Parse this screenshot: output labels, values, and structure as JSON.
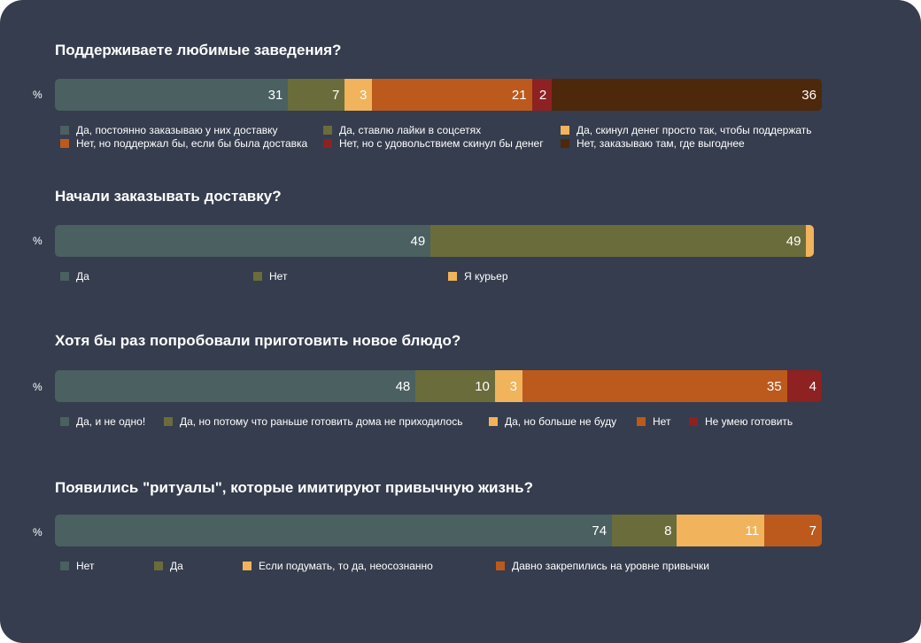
{
  "colors": {
    "background": "#353d4e",
    "palette": [
      "#4a6061",
      "#6b6c3b",
      "#f1b35b",
      "#bb5a1c",
      "#8e2121",
      "#4e280a"
    ]
  },
  "unit_label": "%",
  "chart_data": [
    {
      "type": "bar",
      "orientation": "horizontal-stacked",
      "title": "Поддерживаете любимые заведения?",
      "unit": "%",
      "series": [
        {
          "name": "Да, постоянно заказываю у них доставку",
          "value": 31,
          "color": "#4a6061"
        },
        {
          "name": "Да, ставлю лайки в соцсетях",
          "value": 7,
          "color": "#6b6c3b"
        },
        {
          "name": "Да, скинул денег просто так, чтобы поддержать",
          "value": 3,
          "color": "#f1b35b"
        },
        {
          "name": "Нет, но поддержал бы, если бы была доставка",
          "value": 21,
          "color": "#bb5a1c"
        },
        {
          "name": "Нет, но с удовольствием скинул бы денег",
          "value": 2,
          "color": "#8e2121"
        },
        {
          "name": "Нет, заказываю там, где выгоднее",
          "value": 36,
          "color": "#4e280a"
        }
      ]
    },
    {
      "type": "bar",
      "orientation": "horizontal-stacked",
      "title": "Начали заказывать доставку?",
      "unit": "%",
      "series": [
        {
          "name": "Да",
          "value": 49,
          "color": "#4a6061"
        },
        {
          "name": "Нет",
          "value": 49,
          "color": "#6b6c3b"
        },
        {
          "name": "Я курьер",
          "value": 1,
          "color": "#f1b35b",
          "hide_label": true
        }
      ]
    },
    {
      "type": "bar",
      "orientation": "horizontal-stacked",
      "title": "Хотя бы раз попробовали приготовить новое блюдо?",
      "unit": "%",
      "series": [
        {
          "name": "Да, и не одно!",
          "value": 48,
          "color": "#4a6061"
        },
        {
          "name": "Да, но потому что раньше готовить дома не приходилось",
          "value": 10,
          "color": "#6b6c3b"
        },
        {
          "name": "Да, но больше не буду",
          "value": 3,
          "color": "#f1b35b"
        },
        {
          "name": "Нет",
          "value": 35,
          "color": "#bb5a1c"
        },
        {
          "name": "Не умею готовить",
          "value": 4,
          "color": "#8e2121"
        }
      ]
    },
    {
      "type": "bar",
      "orientation": "horizontal-stacked",
      "title": "Появились \"ритуалы\", которые имитируют привычную жизнь?",
      "unit": "%",
      "series": [
        {
          "name": "Нет",
          "value": 74,
          "color": "#4a6061"
        },
        {
          "name": "Да",
          "value": 8,
          "color": "#6b6c3b"
        },
        {
          "name": "Если подумать, то да, неосознанно",
          "value": 11,
          "color": "#f1b35b"
        },
        {
          "name": "Давно закрепились на уровне привычки",
          "value": 7,
          "color": "#bb5a1c"
        }
      ]
    }
  ]
}
